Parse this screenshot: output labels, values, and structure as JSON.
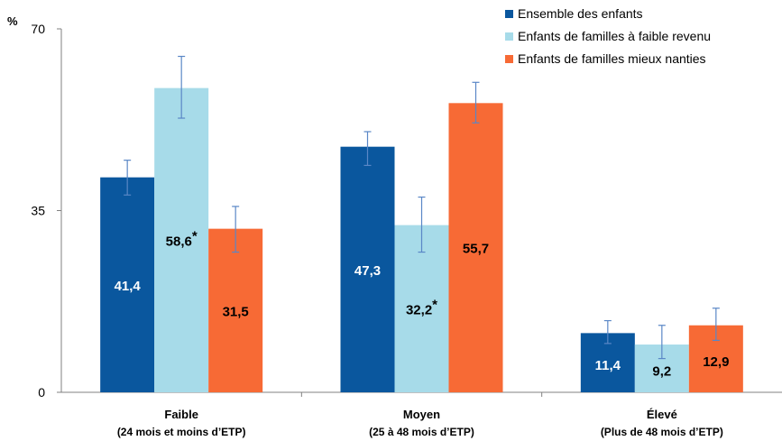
{
  "chart_data": {
    "type": "bar",
    "ylabel": "%",
    "ylim": [
      0,
      70
    ],
    "yticks": [
      "0",
      "35",
      "70"
    ],
    "categories": [
      {
        "name": "Faible",
        "sub": "(24 mois et moins d’ETP)"
      },
      {
        "name": "Moyen",
        "sub": "(25 à 48 mois d’ETP)"
      },
      {
        "name": "Élevé",
        "sub": "(Plus de 48 mois d’ETP)"
      }
    ],
    "series": [
      {
        "name": "Ensemble des enfants",
        "color": "#0a579e",
        "label_color": "#ffffff",
        "values": [
          41.4,
          47.3,
          11.4
        ],
        "labels": [
          "41,4",
          "47,3",
          "11,4"
        ],
        "error_low": [
          38.0,
          43.7,
          9.4
        ],
        "error_high": [
          44.7,
          50.2,
          13.8
        ]
      },
      {
        "name": "Enfants de familles à faible revenu",
        "color": "#a7dbe9",
        "label_color": "#000000",
        "values": [
          58.6,
          32.2,
          9.2
        ],
        "labels": [
          "58,6*",
          "32,2*",
          "9,2"
        ],
        "error_low": [
          52.8,
          27.0,
          6.5
        ],
        "error_high": [
          64.7,
          37.6,
          12.9
        ]
      },
      {
        "name": "Enfants de familles mieux nanties",
        "color": "#f76a35",
        "label_color": "#000000",
        "values": [
          31.5,
          55.7,
          12.9
        ],
        "labels": [
          "31,5",
          "55,7",
          "12,9"
        ],
        "error_low": [
          27.0,
          51.9,
          10.0
        ],
        "error_high": [
          35.8,
          59.7,
          16.2
        ]
      }
    ],
    "legend_position": "top-right",
    "grid": false
  }
}
